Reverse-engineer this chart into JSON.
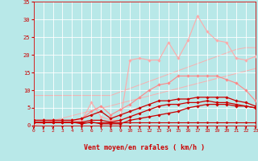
{
  "xlabel": "Vent moyen/en rafales ( km/h )",
  "xlim": [
    0,
    23
  ],
  "ylim": [
    0,
    35
  ],
  "yticks": [
    0,
    5,
    10,
    15,
    20,
    25,
    30,
    35
  ],
  "xticks": [
    0,
    1,
    2,
    3,
    4,
    5,
    6,
    7,
    8,
    9,
    10,
    11,
    12,
    13,
    14,
    15,
    16,
    17,
    18,
    19,
    20,
    21,
    22,
    23
  ],
  "bg_color": "#b8e8e8",
  "grid_color": "#ffffff",
  "line_color_dark": "#cc0000",
  "series": [
    {
      "x": [
        0,
        1,
        2,
        3,
        4,
        5,
        6,
        7,
        8,
        9,
        10,
        11,
        12,
        13,
        14,
        15,
        16,
        17,
        18,
        19,
        20,
        21,
        22,
        23
      ],
      "y": [
        0,
        0.7,
        1.4,
        2.1,
        2.8,
        3.5,
        4.2,
        4.9,
        5.6,
        6.3,
        7,
        7.7,
        8.4,
        9.1,
        9.8,
        10.5,
        11.2,
        11.9,
        12.6,
        13.3,
        14,
        14.7,
        15.4,
        16.1
      ],
      "color": "#ffaaaa",
      "lw": 0.7,
      "marker": null,
      "ms": 0,
      "alpha": 0.9,
      "zorder": 1
    },
    {
      "x": [
        0,
        1,
        2,
        3,
        4,
        5,
        6,
        7,
        8,
        9,
        10,
        11,
        12,
        13,
        14,
        15,
        16,
        17,
        18,
        19,
        20,
        21,
        22,
        23
      ],
      "y": [
        8.5,
        8.5,
        8.5,
        8.5,
        8.5,
        8.5,
        8.5,
        8.5,
        8.5,
        9.5,
        10.5,
        11.5,
        12.5,
        13.5,
        14.5,
        15.5,
        16.5,
        17.5,
        18.5,
        19.5,
        20.5,
        21.5,
        22,
        22
      ],
      "color": "#ffaaaa",
      "lw": 0.7,
      "marker": null,
      "ms": 0,
      "alpha": 0.9,
      "zorder": 1
    },
    {
      "x": [
        0,
        1,
        2,
        3,
        4,
        5,
        6,
        7,
        8,
        9,
        10,
        11,
        12,
        13,
        14,
        15,
        16,
        17,
        18,
        19,
        20,
        21,
        22,
        23
      ],
      "y": [
        1.5,
        1.5,
        1.5,
        1.5,
        1.5,
        1.5,
        6.5,
        2.5,
        1.5,
        1.5,
        18.5,
        19,
        18.5,
        18.5,
        23.5,
        19,
        24,
        31,
        26.5,
        24,
        23.5,
        19,
        18.5,
        19.5
      ],
      "color": "#ffaaaa",
      "lw": 0.8,
      "marker": "D",
      "ms": 1.8,
      "alpha": 1.0,
      "zorder": 3
    },
    {
      "x": [
        0,
        1,
        2,
        3,
        4,
        5,
        6,
        7,
        8,
        9,
        10,
        11,
        12,
        13,
        14,
        15,
        16,
        17,
        18,
        19,
        20,
        21,
        22,
        23
      ],
      "y": [
        1.5,
        1.5,
        1.5,
        1.5,
        1.5,
        2,
        4,
        5.5,
        3,
        4.5,
        6,
        8,
        10,
        11.5,
        12,
        14,
        14,
        14,
        14,
        14,
        13,
        12,
        10,
        7
      ],
      "color": "#ff8888",
      "lw": 0.8,
      "marker": "D",
      "ms": 1.8,
      "alpha": 1.0,
      "zorder": 3
    },
    {
      "x": [
        0,
        1,
        2,
        3,
        4,
        5,
        6,
        7,
        8,
        9,
        10,
        11,
        12,
        13,
        14,
        15,
        16,
        17,
        18,
        19,
        20,
        21,
        22,
        23
      ],
      "y": [
        1.5,
        1.5,
        1.5,
        1.5,
        1.5,
        2,
        3,
        4,
        2,
        3,
        4,
        5,
        6,
        7,
        7,
        7.5,
        7.5,
        8,
        8,
        8,
        8,
        7,
        6.5,
        5.5
      ],
      "color": "#cc0000",
      "lw": 0.9,
      "marker": "D",
      "ms": 1.8,
      "alpha": 1.0,
      "zorder": 4
    },
    {
      "x": [
        0,
        1,
        2,
        3,
        4,
        5,
        6,
        7,
        8,
        9,
        10,
        11,
        12,
        13,
        14,
        15,
        16,
        17,
        18,
        19,
        20,
        21,
        22,
        23
      ],
      "y": [
        1,
        1,
        1,
        1,
        1,
        1,
        1.5,
        1.5,
        1,
        1.5,
        2.5,
        3.5,
        4.5,
        5.5,
        6,
        6,
        6.5,
        6.5,
        7,
        6.5,
        6.5,
        6,
        5.5,
        5
      ],
      "color": "#cc0000",
      "lw": 0.9,
      "marker": "D",
      "ms": 1.8,
      "alpha": 1.0,
      "zorder": 4
    },
    {
      "x": [
        0,
        1,
        2,
        3,
        4,
        5,
        6,
        7,
        8,
        9,
        10,
        11,
        12,
        13,
        14,
        15,
        16,
        17,
        18,
        19,
        20,
        21,
        22,
        23
      ],
      "y": [
        1,
        1,
        1,
        1,
        1,
        0.5,
        1,
        0.5,
        0.5,
        0.5,
        1.5,
        2,
        2.5,
        3,
        3.5,
        4,
        5,
        5.5,
        6,
        6,
        6,
        5.5,
        5.5,
        5
      ],
      "color": "#cc0000",
      "lw": 0.9,
      "marker": "D",
      "ms": 1.8,
      "alpha": 1.0,
      "zorder": 4
    },
    {
      "x": [
        0,
        1,
        2,
        3,
        4,
        5,
        6,
        7,
        8,
        9,
        10,
        11,
        12,
        13,
        14,
        15,
        16,
        17,
        18,
        19,
        20,
        21,
        22,
        23
      ],
      "y": [
        1,
        1,
        1,
        1,
        1,
        1,
        1,
        1,
        1,
        1,
        1,
        1,
        1,
        1,
        1,
        1,
        1,
        1,
        1,
        1,
        1,
        1,
        1,
        1
      ],
      "color": "#cc0000",
      "lw": 0.8,
      "marker": "D",
      "ms": 1.5,
      "alpha": 1.0,
      "zorder": 4
    }
  ]
}
